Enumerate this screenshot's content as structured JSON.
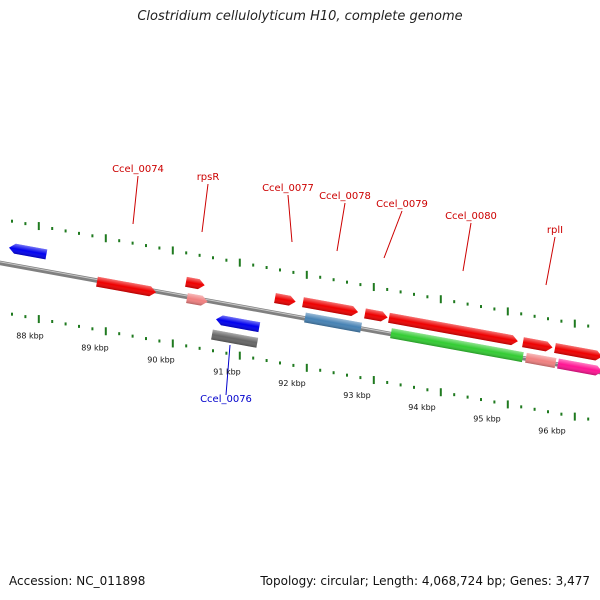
{
  "title": "Clostridium cellulolyticum H10, complete genome",
  "footer": {
    "accession": "Accession: NC_011898",
    "summary": "Topology: circular; Length: 4,068,724 bp; Genes: 3,477"
  },
  "colors": {
    "backbone": "#808080",
    "tick": "#1f7a1f",
    "label_red": "#cc0000",
    "label_blue": "#0000cc"
  },
  "scale_labels": [
    "88 kbp",
    "89 kbp",
    "90 kbp",
    "91 kbp",
    "92 kbp",
    "93 kbp",
    "94 kbp",
    "95 kbp",
    "96 kbp"
  ],
  "genes": [
    {
      "label": "",
      "color": "#0000ee",
      "strand": "-",
      "track": "lower1"
    },
    {
      "label": "Ccel_0074",
      "color": "#ee0000",
      "strand": "+",
      "track": "upper1"
    },
    {
      "label": "rpsR",
      "color": "#f08080",
      "strand": "+",
      "track": "upper2"
    },
    {
      "label": "",
      "color": "#ee0000",
      "strand": "+",
      "track": "upper1"
    },
    {
      "label": "Ccel_0076",
      "color": "#0000ee",
      "strand": "-",
      "track": "lower1"
    },
    {
      "label": "",
      "color": "#666666",
      "strand": "0",
      "track": "lower2"
    },
    {
      "label": "Ccel_0077",
      "color": "#ee0000",
      "strand": "+",
      "track": "upper1"
    },
    {
      "label": "Ccel_0078",
      "color": "#4682b4",
      "strand": "0",
      "track": "upper2"
    },
    {
      "label": "",
      "color": "#ee0000",
      "strand": "+",
      "track": "upper1"
    },
    {
      "label": "Ccel_0079",
      "color": "#ee0000",
      "strand": "+",
      "track": "upper1"
    },
    {
      "label": "Ccel_0080",
      "color": "#33cc33",
      "strand": "0",
      "track": "upper2"
    },
    {
      "label": "",
      "color": "#ee0000",
      "strand": "+",
      "track": "upper1"
    },
    {
      "label": "rplI",
      "color": "#f08080",
      "strand": "0",
      "track": "upper2"
    },
    {
      "label": "",
      "color": "#ee0000",
      "strand": "+",
      "track": "upper1"
    },
    {
      "label": "",
      "color": "#ff1493",
      "strand": "+",
      "track": "upper2"
    },
    {
      "label": "",
      "color": "#ee0000",
      "strand": "+",
      "track": "upper1"
    }
  ]
}
